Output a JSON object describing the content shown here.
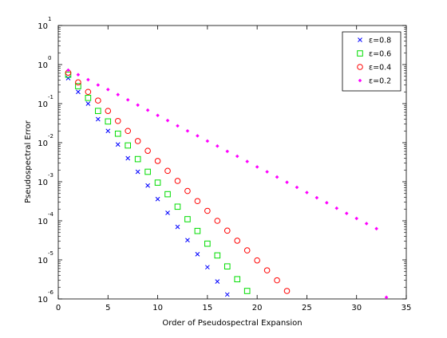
{
  "chart_data": {
    "type": "scatter",
    "title": "",
    "xlabel": "Order of Pseudospectral Expansion",
    "ylabel": "Pseudospectral Error",
    "xlim": [
      0,
      35
    ],
    "ylim": [
      1e-06,
      10
    ],
    "y_scale": "log",
    "grid": false,
    "legend_position": "top-right",
    "x_ticks": [
      "0",
      "5",
      "10",
      "15",
      "20",
      "25",
      "30",
      "35"
    ],
    "y_ticks": [
      {
        "base": "10",
        "exp": "1"
      },
      {
        "base": "10",
        "exp": "0"
      },
      {
        "base": "10",
        "exp": "-1"
      },
      {
        "base": "10",
        "exp": "-2"
      },
      {
        "base": "10",
        "exp": "-3"
      },
      {
        "base": "10",
        "exp": "-4"
      },
      {
        "base": "10",
        "exp": "-5"
      },
      {
        "base": "10",
        "exp": "-6"
      }
    ],
    "series": [
      {
        "name": "ε=0.8",
        "marker": "x",
        "color": "#0000ff",
        "x": [
          1,
          2,
          3,
          4,
          5,
          6,
          7,
          8,
          9,
          10,
          11,
          12,
          13,
          14,
          15,
          16,
          17
        ],
        "y": [
          0.45,
          0.2,
          0.1,
          0.04,
          0.02,
          0.009,
          0.004,
          0.0018,
          0.0008,
          0.00036,
          0.00016,
          7e-05,
          3.2e-05,
          1.4e-05,
          6.5e-06,
          2.8e-06,
          1.3e-06
        ]
      },
      {
        "name": "ε=0.6",
        "marker": "square",
        "color": "#00dd00",
        "x": [
          1,
          2,
          3,
          4,
          5,
          6,
          7,
          8,
          9,
          10,
          11,
          12,
          13,
          14,
          15,
          16,
          17,
          18,
          19
        ],
        "y": [
          0.55,
          0.28,
          0.14,
          0.065,
          0.035,
          0.017,
          0.0085,
          0.0038,
          0.0018,
          0.00095,
          0.00048,
          0.00023,
          0.00011,
          5.5e-05,
          2.6e-05,
          1.3e-05,
          6.8e-06,
          3.2e-06,
          1.6e-06
        ]
      },
      {
        "name": "ε=0.4",
        "marker": "circle",
        "color": "#ff0000",
        "x": [
          1,
          2,
          3,
          4,
          5,
          6,
          7,
          8,
          9,
          10,
          11,
          12,
          13,
          14,
          15,
          16,
          17,
          18,
          19,
          20,
          21,
          22,
          23
        ],
        "y": [
          0.62,
          0.35,
          0.2,
          0.12,
          0.065,
          0.036,
          0.02,
          0.011,
          0.0062,
          0.0034,
          0.0019,
          0.00105,
          0.00058,
          0.00032,
          0.00018,
          0.0001,
          5.6e-05,
          3.1e-05,
          1.75e-05,
          9.7e-06,
          5.4e-06,
          3e-06,
          1.6e-06
        ]
      },
      {
        "name": "ε=0.2",
        "marker": "diamond",
        "color": "#ff00ff",
        "x": [
          1,
          2,
          3,
          4,
          5,
          6,
          7,
          8,
          9,
          10,
          11,
          12,
          13,
          14,
          15,
          16,
          17,
          18,
          19,
          20,
          21,
          22,
          23,
          24,
          25,
          26,
          27,
          28,
          29,
          30,
          31,
          32,
          33
        ],
        "y": [
          0.72,
          0.55,
          0.41,
          0.3,
          0.23,
          0.17,
          0.125,
          0.092,
          0.068,
          0.05,
          0.037,
          0.027,
          0.02,
          0.015,
          0.011,
          0.0082,
          0.006,
          0.0045,
          0.0033,
          0.0024,
          0.0018,
          0.00132,
          0.00097,
          0.00072,
          0.00053,
          0.00039,
          0.00029,
          0.00021,
          0.000155,
          0.000115,
          8.5e-05,
          6.3e-05,
          1.1e-06
        ]
      }
    ]
  }
}
